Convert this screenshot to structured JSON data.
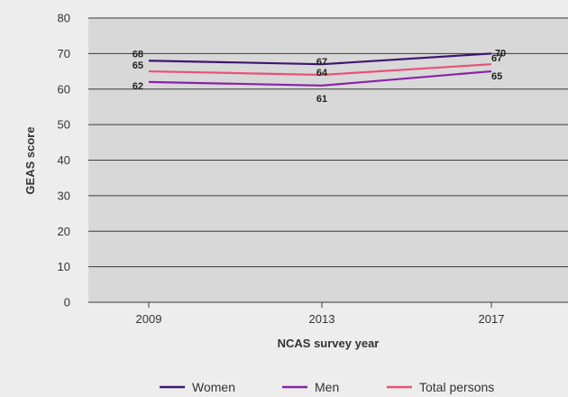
{
  "chart_data": {
    "type": "line",
    "title": "",
    "xlabel": "NCAS survey year",
    "ylabel": "GEAS score",
    "categories": [
      "2009",
      "2013",
      "2017"
    ],
    "ylim": [
      0,
      80
    ],
    "yticks": [
      0,
      10,
      20,
      30,
      40,
      50,
      60,
      70,
      80
    ],
    "grid": true,
    "legend": "bottom",
    "series": [
      {
        "name": "Women",
        "values": [
          68,
          67,
          70
        ],
        "color": "#3f1670"
      },
      {
        "name": "Men",
        "values": [
          62,
          61,
          65
        ],
        "color": "#8a22a6"
      },
      {
        "name": "Total persons",
        "values": [
          65,
          64,
          67
        ],
        "color": "#e8527a"
      }
    ]
  },
  "colors": {
    "plot_background": "#d8d8d8",
    "page_background": "#ededed",
    "gridline": "#3a3a3a"
  }
}
